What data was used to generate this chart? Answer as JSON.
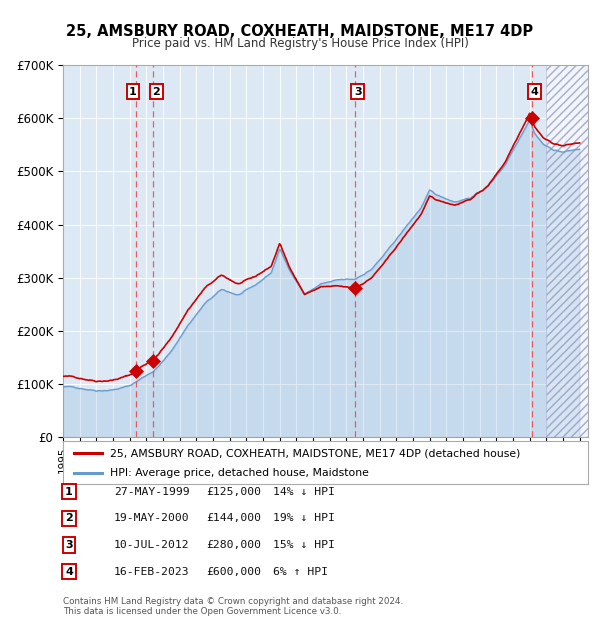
{
  "title1": "25, AMSBURY ROAD, COXHEATH, MAIDSTONE, ME17 4DP",
  "title2": "Price paid vs. HM Land Registry's House Price Index (HPI)",
  "ylim": [
    0,
    700000
  ],
  "yticks": [
    0,
    100000,
    200000,
    300000,
    400000,
    500000,
    600000,
    700000
  ],
  "ytick_labels": [
    "£0",
    "£100K",
    "£200K",
    "£300K",
    "£400K",
    "£500K",
    "£600K",
    "£700K"
  ],
  "xlim_start": 1995.0,
  "xlim_end": 2026.5,
  "background_color": "#ffffff",
  "plot_bg_color": "#dce9f5",
  "hatch_region_start": 2024.0,
  "hpi_waypoints_years": [
    1995.0,
    1997.0,
    1998.0,
    1999.0,
    2000.5,
    2001.5,
    2002.5,
    2003.5,
    2004.5,
    2005.5,
    2006.5,
    2007.5,
    2008.0,
    2008.5,
    2009.5,
    2010.5,
    2011.5,
    2012.5,
    2013.0,
    2013.5,
    2014.5,
    2015.5,
    2016.5,
    2017.0,
    2017.5,
    2018.5,
    2019.5,
    2020.5,
    2021.5,
    2022.0,
    2022.5,
    2023.0,
    2023.3,
    2023.8,
    2024.3,
    2025.0,
    2026.0
  ],
  "hpi_waypoints_vals": [
    95000,
    90000,
    93000,
    100000,
    130000,
    165000,
    215000,
    255000,
    280000,
    270000,
    285000,
    310000,
    355000,
    320000,
    270000,
    290000,
    295000,
    295000,
    305000,
    315000,
    350000,
    390000,
    430000,
    460000,
    450000,
    440000,
    450000,
    470000,
    510000,
    540000,
    570000,
    600000,
    575000,
    555000,
    545000,
    540000,
    545000
  ],
  "sales": [
    {
      "label": 1,
      "year": 1999.38,
      "price": 125000,
      "date": "27-MAY-1999",
      "pct": "14%",
      "dir": "↓"
    },
    {
      "label": 2,
      "year": 2000.38,
      "price": 144000,
      "date": "19-MAY-2000",
      "pct": "19%",
      "dir": "↓"
    },
    {
      "label": 3,
      "year": 2012.53,
      "price": 280000,
      "date": "10-JUL-2012",
      "pct": "15%",
      "dir": "↓"
    },
    {
      "label": 4,
      "year": 2023.12,
      "price": 600000,
      "date": "16-FEB-2023",
      "pct": "6%",
      "dir": "↑"
    }
  ],
  "legend_red_label": "25, AMSBURY ROAD, COXHEATH, MAIDSTONE, ME17 4DP (detached house)",
  "legend_blue_label": "HPI: Average price, detached house, Maidstone",
  "table_entries": [
    {
      "num": 1,
      "date": "27-MAY-1999",
      "price": "£125,000",
      "pct": "14% ↓ HPI"
    },
    {
      "num": 2,
      "date": "19-MAY-2000",
      "price": "£144,000",
      "pct": "19% ↓ HPI"
    },
    {
      "num": 3,
      "date": "10-JUL-2012",
      "price": "£280,000",
      "pct": "15% ↓ HPI"
    },
    {
      "num": 4,
      "date": "16-FEB-2023",
      "price": "£600,000",
      "pct": "6% ↑ HPI"
    }
  ],
  "footnote1": "Contains HM Land Registry data © Crown copyright and database right 2024.",
  "footnote2": "This data is licensed under the Open Government Licence v3.0.",
  "red_color": "#cc0000",
  "blue_color": "#6699cc"
}
